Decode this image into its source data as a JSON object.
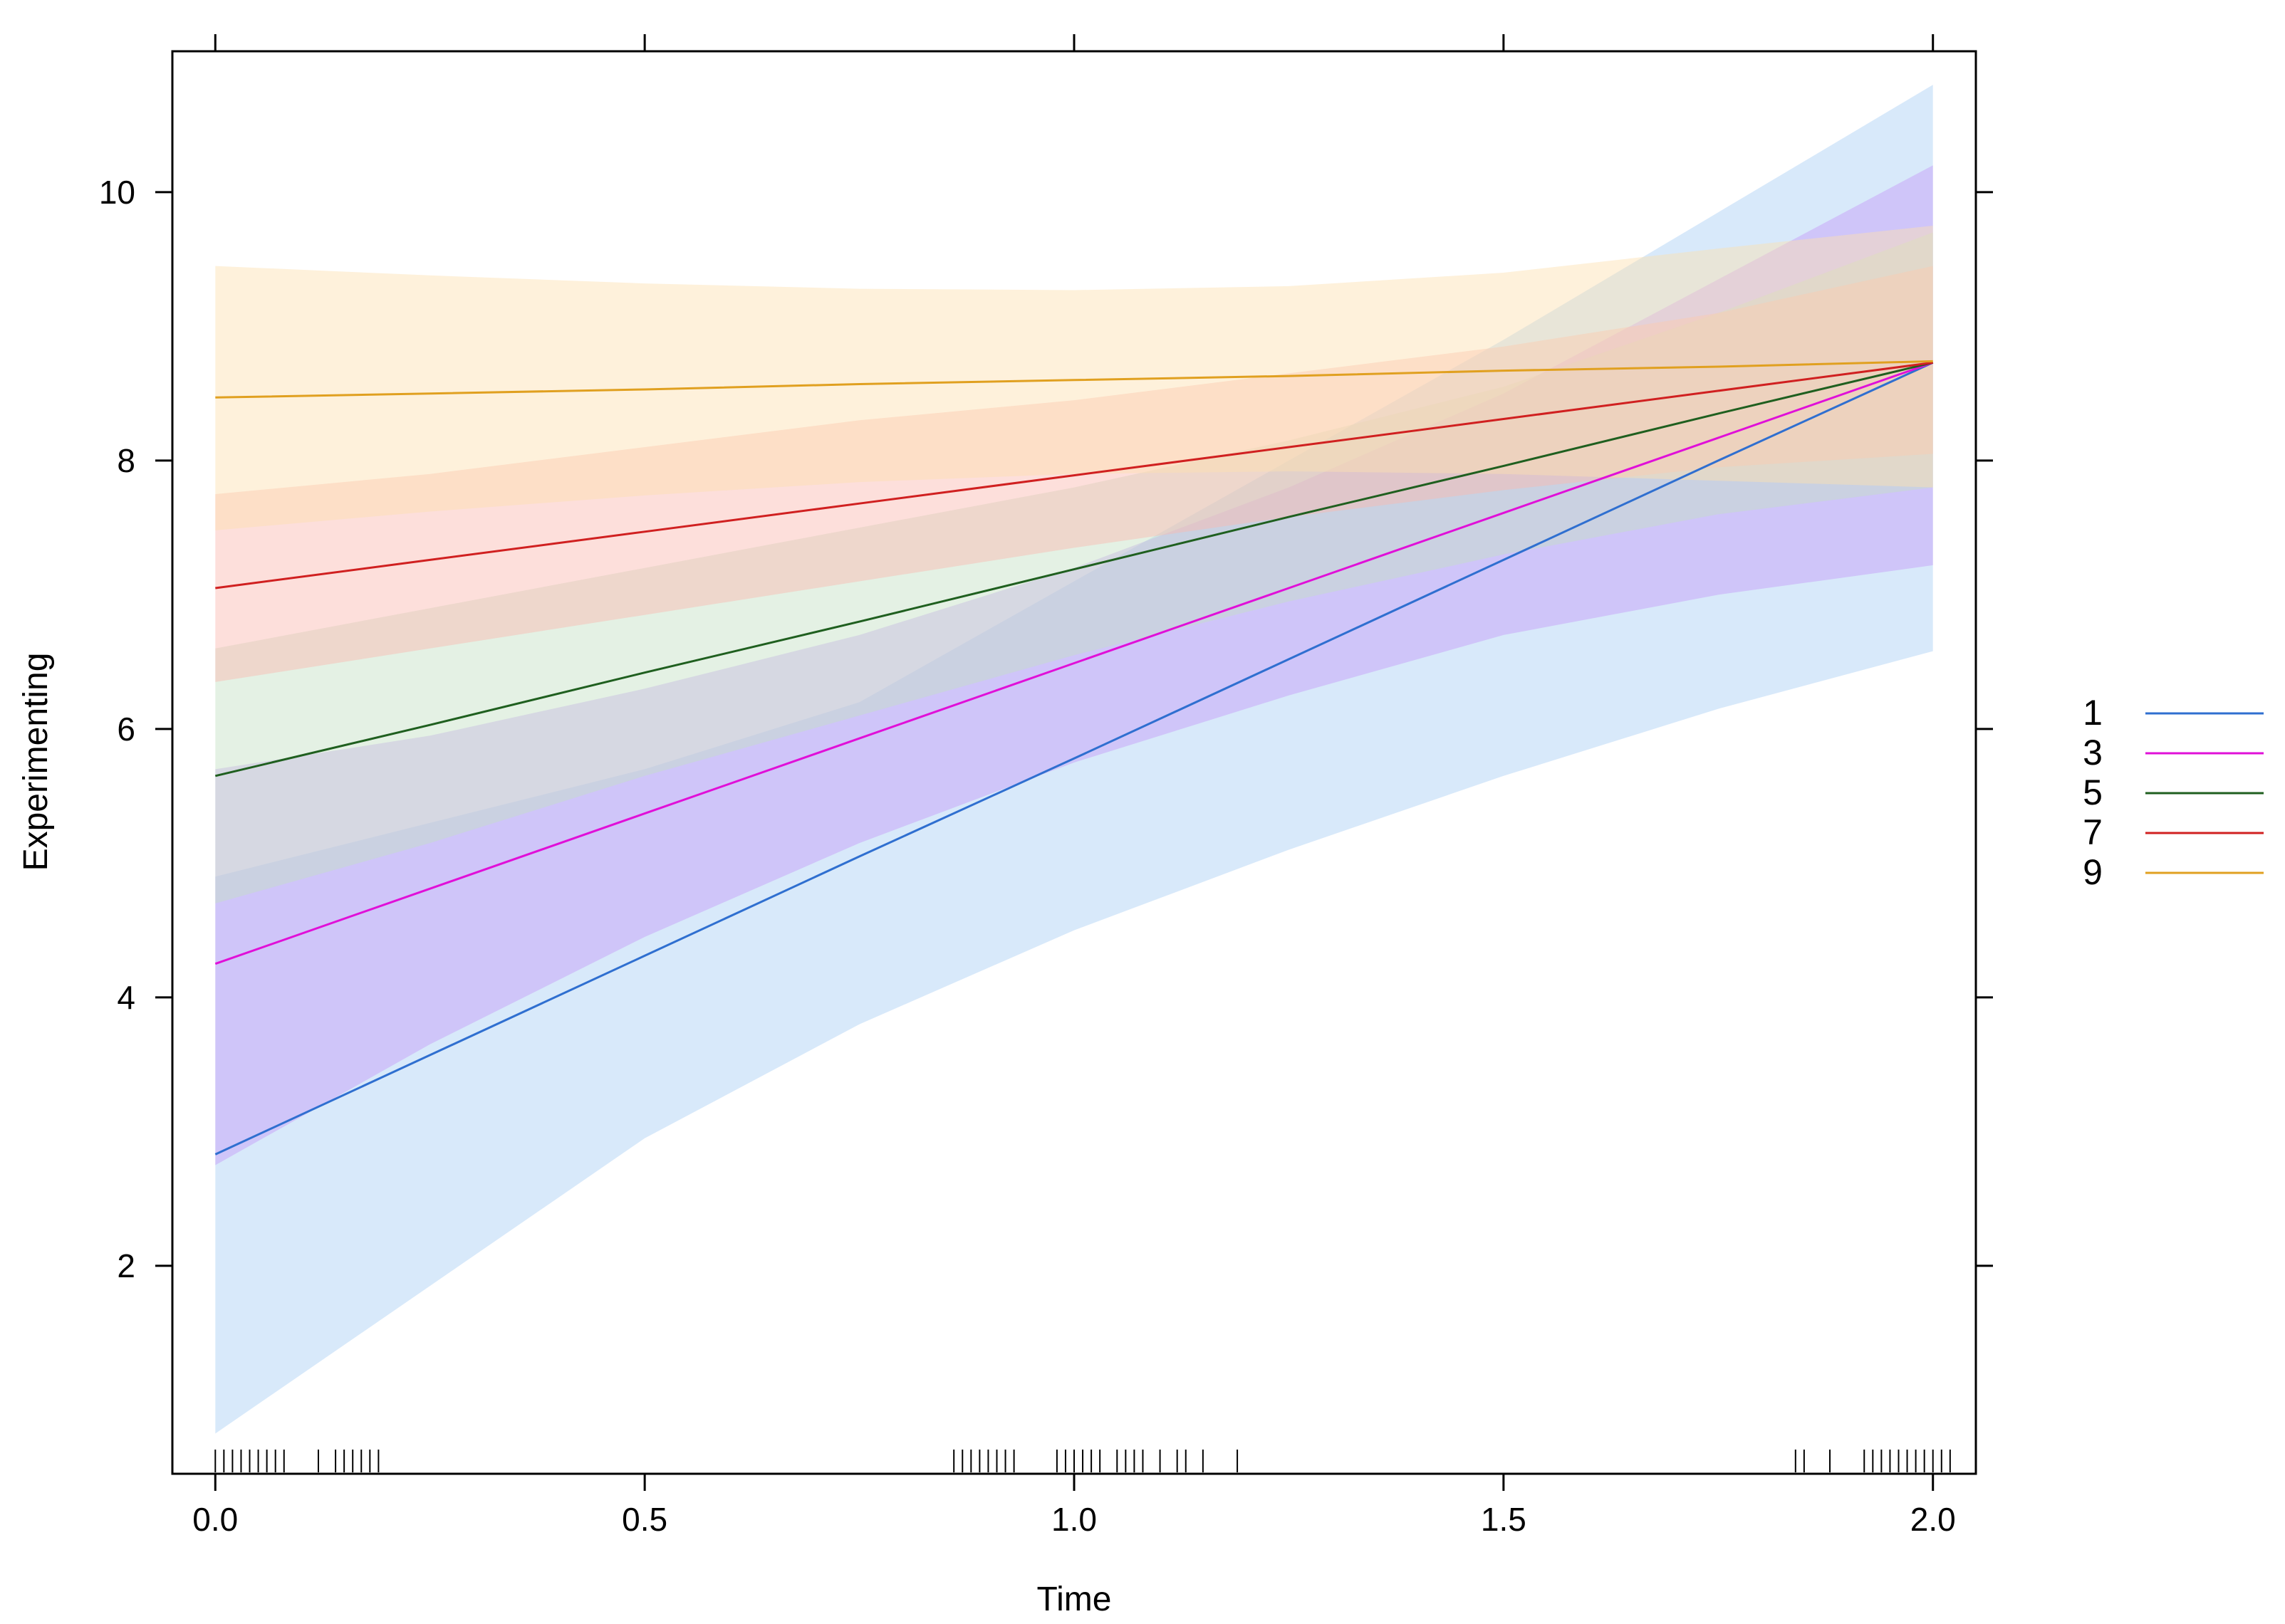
{
  "chart_data": {
    "type": "line",
    "title": "",
    "xlabel": "Time",
    "ylabel": "Experimenting",
    "xlim": [
      -0.05,
      2.05
    ],
    "ylim": [
      0.45,
      11.05
    ],
    "x_ticks": [
      0.0,
      0.5,
      1.0,
      1.5,
      2.0
    ],
    "x_tick_labels": [
      "0.0",
      "0.5",
      "1.0",
      "1.5",
      "2.0"
    ],
    "y_ticks": [
      2,
      4,
      6,
      8,
      10
    ],
    "y_tick_labels": [
      "2",
      "4",
      "6",
      "8",
      "10"
    ],
    "grid": false,
    "legend_position": "right",
    "x": [
      0.0,
      0.25,
      0.5,
      0.75,
      1.0,
      1.25,
      1.5,
      1.75,
      2.0
    ],
    "series": [
      {
        "name": "1",
        "line_color": "#2f6fd0",
        "band_color": "#a9cff5",
        "values": [
          2.83,
          3.57,
          4.31,
          5.05,
          5.78,
          6.52,
          7.26,
          8.0,
          8.73
        ],
        "lower": [
          0.75,
          1.85,
          2.95,
          3.8,
          4.5,
          5.1,
          5.65,
          6.15,
          6.58
        ],
        "upper": [
          4.9,
          5.3,
          5.7,
          6.2,
          7.1,
          8.0,
          8.9,
          9.85,
          10.8
        ]
      },
      {
        "name": "3",
        "line_color": "#e010d8",
        "band_color": "#c598f8",
        "values": [
          4.25,
          4.81,
          5.37,
          5.93,
          6.49,
          7.05,
          7.61,
          8.17,
          8.73
        ],
        "lower": [
          2.75,
          3.65,
          4.45,
          5.15,
          5.75,
          6.25,
          6.7,
          7.0,
          7.22
        ],
        "upper": [
          5.7,
          5.95,
          6.3,
          6.7,
          7.2,
          7.8,
          8.5,
          9.35,
          10.2
        ]
      },
      {
        "name": "5",
        "line_color": "#1f5f1f",
        "band_color": "#c3e1c3",
        "values": [
          5.65,
          6.03,
          6.42,
          6.8,
          7.19,
          7.58,
          7.96,
          8.35,
          8.73
        ],
        "lower": [
          4.7,
          5.15,
          5.65,
          6.1,
          6.55,
          6.95,
          7.3,
          7.6,
          7.8
        ],
        "upper": [
          6.6,
          6.9,
          7.2,
          7.5,
          7.8,
          8.15,
          8.55,
          9.1,
          9.7
        ]
      },
      {
        "name": "7",
        "line_color": "#d02020",
        "band_color": "#fbb8b0",
        "values": [
          7.05,
          7.26,
          7.47,
          7.68,
          7.89,
          8.1,
          8.31,
          8.52,
          8.73
        ],
        "lower": [
          6.35,
          6.6,
          6.85,
          7.1,
          7.35,
          7.58,
          7.78,
          7.95,
          8.05
        ],
        "upper": [
          7.75,
          7.9,
          8.1,
          8.3,
          8.45,
          8.65,
          8.85,
          9.1,
          9.45
        ]
      },
      {
        "name": "9",
        "line_color": "#e0a020",
        "band_color": "#fde0b0",
        "values": [
          8.47,
          8.5,
          8.53,
          8.57,
          8.6,
          8.63,
          8.67,
          8.7,
          8.74
        ],
        "lower": [
          7.48,
          7.62,
          7.74,
          7.84,
          7.9,
          7.92,
          7.9,
          7.85,
          7.8
        ],
        "upper": [
          9.45,
          9.38,
          9.32,
          9.28,
          9.27,
          9.3,
          9.4,
          9.58,
          9.75
        ]
      }
    ],
    "rug_x": [
      0.0,
      0.01,
      0.02,
      0.03,
      0.04,
      0.05,
      0.06,
      0.07,
      0.08,
      0.12,
      0.14,
      0.15,
      0.16,
      0.17,
      0.18,
      0.19,
      0.86,
      0.87,
      0.88,
      0.89,
      0.9,
      0.91,
      0.92,
      0.93,
      0.98,
      0.99,
      1.0,
      1.01,
      1.02,
      1.03,
      1.05,
      1.06,
      1.07,
      1.08,
      1.1,
      1.12,
      1.13,
      1.15,
      1.19,
      1.84,
      1.85,
      1.88,
      1.92,
      1.93,
      1.94,
      1.95,
      1.96,
      1.97,
      1.98,
      1.99,
      2.0,
      2.01,
      2.02
    ]
  }
}
